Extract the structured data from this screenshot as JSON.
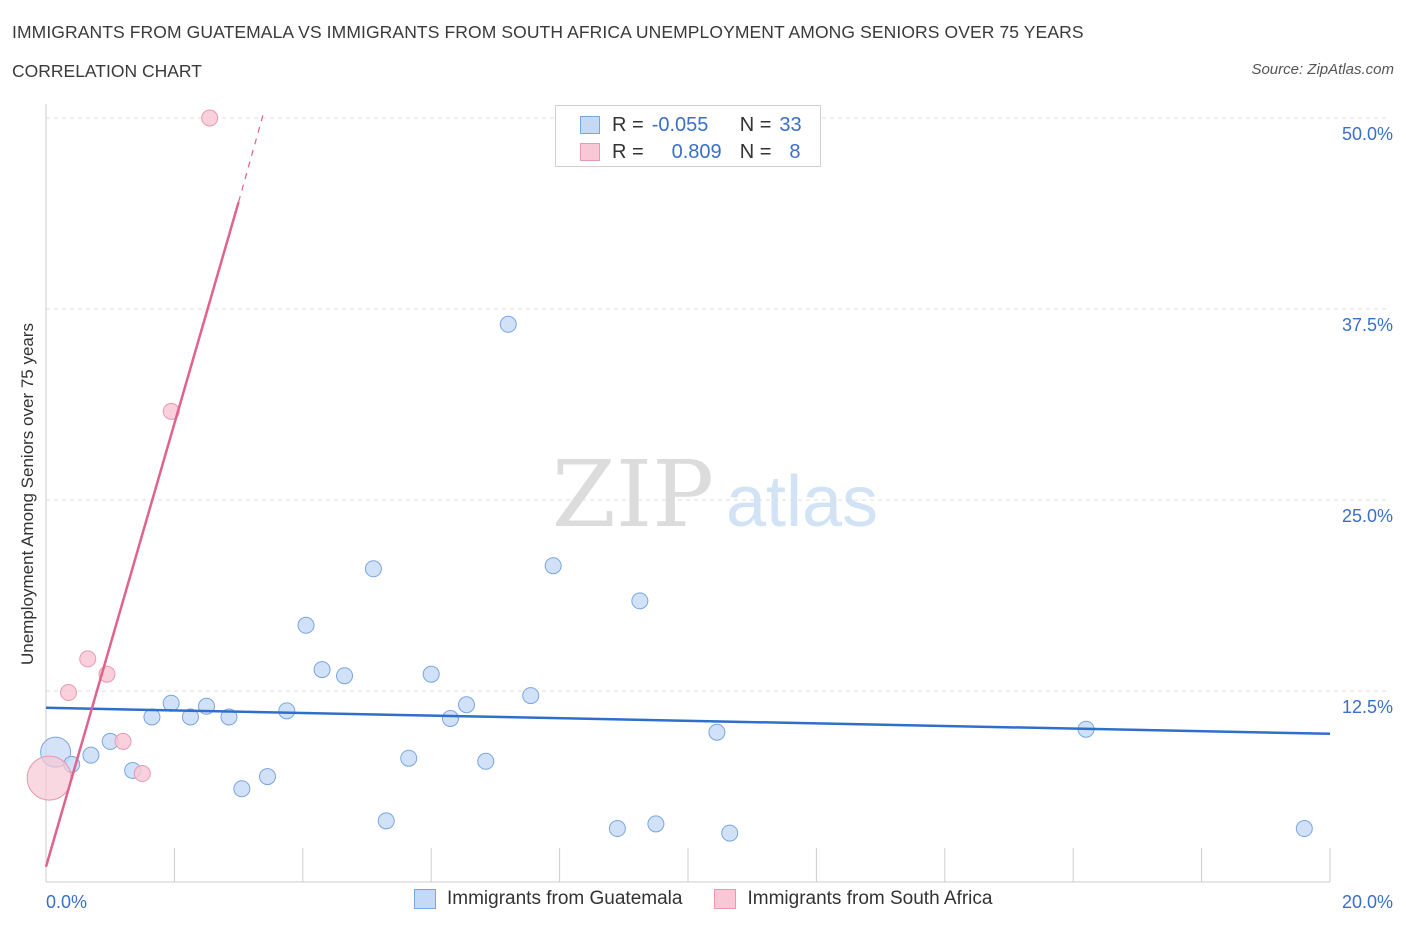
{
  "header": {
    "title": "IMMIGRANTS FROM GUATEMALA VS IMMIGRANTS FROM SOUTH AFRICA UNEMPLOYMENT AMONG SENIORS OVER 75 YEARS",
    "subtitle": "CORRELATION CHART",
    "source": "Source: ZipAtlas.com"
  },
  "watermark": {
    "zip": "ZIP",
    "atlas": "atlas"
  },
  "colors": {
    "guatemala_fill": "#c5d9f5",
    "guatemala_stroke": "#7aa6e0",
    "guatemala_line": "#2f6fcc",
    "southafrica_fill": "#f8c8d6",
    "southafrica_stroke": "#e89ab2",
    "southafrica_line": "#e0628e",
    "tick_label": "#3a6fc8"
  },
  "legend": {
    "rows": [
      {
        "r_label": "R =",
        "r_value": "-0.055",
        "n_label": "N =",
        "n_value": "33"
      },
      {
        "r_label": "R =",
        "r_value": "0.809",
        "n_label": "N =",
        "n_value": "8"
      }
    ],
    "series_labels": [
      "Immigrants from Guatemala",
      "Immigrants from South Africa"
    ]
  },
  "chart_data": {
    "type": "scatter",
    "title": "IMMIGRANTS FROM GUATEMALA VS IMMIGRANTS FROM SOUTH AFRICA UNEMPLOYMENT AMONG SENIORS OVER 75 YEARS",
    "xlabel": "",
    "ylabel": "Unemployment Among Seniors over 75 years",
    "xlim": [
      0,
      20
    ],
    "ylim": [
      0,
      50
    ],
    "x_tick_labels": [
      "0.0%",
      "20.0%"
    ],
    "y_ticks": [
      12.5,
      25.0,
      37.5,
      50.0
    ],
    "y_tick_labels": [
      "12.5%",
      "25.0%",
      "37.5%",
      "50.0%"
    ],
    "grid": true,
    "legend_position": "top-center",
    "series": [
      {
        "name": "Immigrants from Guatemala",
        "r": -0.055,
        "n": 33,
        "points": [
          {
            "x": 0.15,
            "y": 8.5,
            "big": true
          },
          {
            "x": 0.4,
            "y": 7.7
          },
          {
            "x": 0.7,
            "y": 8.3
          },
          {
            "x": 1.0,
            "y": 9.2
          },
          {
            "x": 1.35,
            "y": 7.3
          },
          {
            "x": 1.65,
            "y": 10.8
          },
          {
            "x": 1.95,
            "y": 11.7
          },
          {
            "x": 2.25,
            "y": 10.8
          },
          {
            "x": 2.5,
            "y": 11.5
          },
          {
            "x": 2.85,
            "y": 10.8
          },
          {
            "x": 3.05,
            "y": 6.1
          },
          {
            "x": 3.45,
            "y": 6.9
          },
          {
            "x": 3.75,
            "y": 11.2
          },
          {
            "x": 4.05,
            "y": 16.8
          },
          {
            "x": 4.3,
            "y": 13.9
          },
          {
            "x": 4.65,
            "y": 13.5
          },
          {
            "x": 5.1,
            "y": 20.5
          },
          {
            "x": 5.3,
            "y": 4.0
          },
          {
            "x": 5.65,
            "y": 8.1
          },
          {
            "x": 6.0,
            "y": 13.6
          },
          {
            "x": 6.3,
            "y": 10.7
          },
          {
            "x": 6.55,
            "y": 11.6
          },
          {
            "x": 6.85,
            "y": 7.9
          },
          {
            "x": 7.2,
            "y": 36.5
          },
          {
            "x": 7.55,
            "y": 12.2
          },
          {
            "x": 7.9,
            "y": 20.7
          },
          {
            "x": 8.9,
            "y": 3.5
          },
          {
            "x": 9.25,
            "y": 18.4
          },
          {
            "x": 9.5,
            "y": 3.8
          },
          {
            "x": 10.45,
            "y": 9.8
          },
          {
            "x": 10.65,
            "y": 3.2
          },
          {
            "x": 16.2,
            "y": 10.0
          },
          {
            "x": 19.6,
            "y": 3.5
          }
        ],
        "trend": {
          "x0": 0,
          "y0": 11.4,
          "x1": 20,
          "y1": 9.7
        }
      },
      {
        "name": "Immigrants from South Africa",
        "r": 0.809,
        "n": 8,
        "points": [
          {
            "x": 0.05,
            "y": 6.8,
            "big": true
          },
          {
            "x": 0.35,
            "y": 12.4
          },
          {
            "x": 0.65,
            "y": 14.6
          },
          {
            "x": 0.95,
            "y": 13.6
          },
          {
            "x": 1.2,
            "y": 9.2
          },
          {
            "x": 1.5,
            "y": 7.1
          },
          {
            "x": 1.95,
            "y": 30.8
          },
          {
            "x": 2.55,
            "y": 50.0
          }
        ],
        "trend": {
          "x0": 0,
          "y0": 1.0,
          "x1": 3.0,
          "y1": 44.5
        },
        "trend_dashed": {
          "x0": 3.0,
          "y0": 44.5,
          "x1": 3.4,
          "y1": 50.5
        }
      }
    ]
  }
}
